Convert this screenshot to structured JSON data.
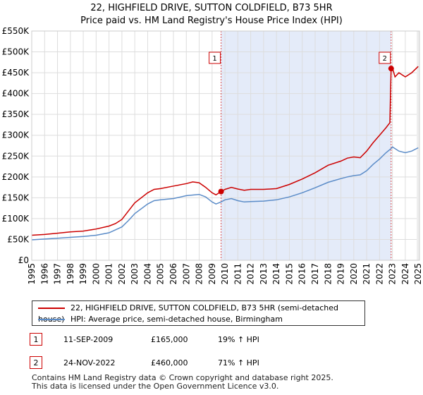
{
  "header": {
    "title": "22, HIGHFIELD DRIVE, SUTTON COLDFIELD, B73 5HR",
    "subtitle": "Price paid vs. HM Land Registry's House Price Index (HPI)"
  },
  "colors": {
    "property": "#cc0000",
    "hpi": "#5b8cc8",
    "shade": "#dde6f7",
    "grid": "#dddddd"
  },
  "chart_data": {
    "type": "line",
    "title": "22, HIGHFIELD DRIVE, SUTTON COLDFIELD, B73 5HR",
    "subtitle": "Price paid vs. HM Land Registry's House Price Index (HPI)",
    "xlim": [
      1995,
      2025.1
    ],
    "ylim": [
      0,
      550000
    ],
    "y_ticks": [
      0,
      50000,
      100000,
      150000,
      200000,
      250000,
      300000,
      350000,
      400000,
      450000,
      500000,
      550000
    ],
    "y_tick_labels": [
      "£0",
      "£50K",
      "£100K",
      "£150K",
      "£200K",
      "£250K",
      "£300K",
      "£350K",
      "£400K",
      "£450K",
      "£500K",
      "£550K"
    ],
    "x_ticks": [
      1995,
      1996,
      1997,
      1998,
      1999,
      2000,
      2001,
      2002,
      2003,
      2004,
      2005,
      2006,
      2007,
      2008,
      2009,
      2010,
      2011,
      2012,
      2013,
      2014,
      2015,
      2016,
      2017,
      2018,
      2019,
      2020,
      2021,
      2022,
      2023,
      2024,
      2025
    ],
    "x_tick_labels": [
      "1995",
      "1996",
      "1997",
      "1998",
      "1999",
      "2000",
      "2001",
      "2002",
      "2003",
      "2004",
      "2005",
      "2006",
      "2007",
      "2008",
      "2009",
      "2010",
      "2011",
      "2012",
      "2013",
      "2014",
      "2015",
      "2016",
      "2017",
      "2018",
      "2019",
      "2020",
      "2021",
      "2022",
      "2023",
      "2024",
      "2025"
    ],
    "shaded_range": [
      2009.7,
      2022.9
    ],
    "series": [
      {
        "name": "22, HIGHFIELD DRIVE, SUTTON COLDFIELD, B73 5HR (semi-detached house)",
        "color": "#cc0000",
        "x": [
          1995,
          1996,
          1997,
          1998,
          1999,
          2000,
          2001,
          2001.5,
          2002,
          2002.5,
          2003,
          2004,
          2004.5,
          2005,
          2006,
          2007,
          2007.5,
          2008,
          2008.5,
          2009,
          2009.3,
          2009.7,
          2010,
          2010.5,
          2011,
          2011.5,
          2012,
          2013,
          2014,
          2015,
          2016,
          2017,
          2018,
          2019,
          2019.5,
          2020,
          2020.5,
          2021,
          2021.5,
          2022,
          2022.5,
          2022.8,
          2022.85,
          2022.9,
          2023,
          2023.2,
          2023.5,
          2024,
          2024.5,
          2025
        ],
        "values": [
          60000,
          62000,
          65000,
          68000,
          70000,
          75000,
          82000,
          88000,
          98000,
          118000,
          138000,
          162000,
          170000,
          172000,
          178000,
          184000,
          188000,
          186000,
          175000,
          162000,
          157000,
          165000,
          170000,
          175000,
          171000,
          168000,
          170000,
          170000,
          172000,
          182000,
          195000,
          210000,
          228000,
          238000,
          245000,
          248000,
          246000,
          262000,
          282000,
          300000,
          318000,
          330000,
          400000,
          460000,
          462000,
          440000,
          450000,
          440000,
          450000,
          465000
        ]
      },
      {
        "name": "HPI: Average price, semi-detached house, Birmingham",
        "color": "#5b8cc8",
        "x": [
          1995,
          1996,
          1997,
          1998,
          1999,
          2000,
          2001,
          2002,
          2002.5,
          2003,
          2004,
          2004.5,
          2005,
          2006,
          2007,
          2008,
          2008.5,
          2009,
          2009.3,
          2009.7,
          2010,
          2010.5,
          2011,
          2011.5,
          2012,
          2013,
          2014,
          2015,
          2016,
          2017,
          2018,
          2019,
          2019.5,
          2020,
          2020.5,
          2021,
          2021.5,
          2022,
          2022.5,
          2022.9,
          2023,
          2023.5,
          2024,
          2024.5,
          2025
        ],
        "values": [
          49000,
          51000,
          53000,
          55000,
          57000,
          60000,
          66000,
          80000,
          95000,
          112000,
          135000,
          143000,
          145000,
          148000,
          155000,
          158000,
          152000,
          140000,
          135000,
          140000,
          145000,
          148000,
          143000,
          140000,
          141000,
          142000,
          145000,
          152000,
          162000,
          174000,
          187000,
          196000,
          200000,
          203000,
          205000,
          215000,
          230000,
          243000,
          258000,
          268000,
          272000,
          262000,
          258000,
          262000,
          270000
        ]
      }
    ],
    "transactions": [
      {
        "label": "1",
        "x": 2009.7,
        "value": 165000
      },
      {
        "label": "2",
        "x": 2022.9,
        "value": 460000
      }
    ]
  },
  "legend": {
    "property_label": "22, HIGHFIELD DRIVE, SUTTON COLDFIELD, B73 5HR (semi-detached house)",
    "hpi_label": "HPI: Average price, semi-detached house, Birmingham"
  },
  "transactions_table": [
    {
      "num": "1",
      "date": "11-SEP-2009",
      "price": "£165,000",
      "hpi": "19% ↑ HPI"
    },
    {
      "num": "2",
      "date": "24-NOV-2022",
      "price": "£460,000",
      "hpi": "71% ↑ HPI"
    }
  ],
  "footer": {
    "line1": "Contains HM Land Registry data © Crown copyright and database right 2025.",
    "line2": "This data is licensed under the Open Government Licence v3.0."
  }
}
